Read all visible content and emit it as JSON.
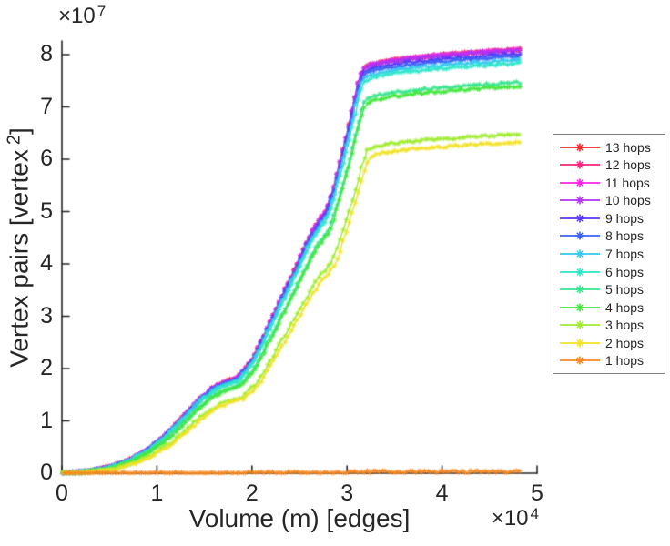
{
  "figure": {
    "background": "#ffffff",
    "text_color": "#262626",
    "axis_color": "#262626"
  },
  "axes": {
    "x": {
      "label": "Volume (m) [edges]",
      "multiplier_base": "×10",
      "multiplier_exp": "4",
      "ticks": [
        "0",
        "1",
        "2",
        "3",
        "4",
        "5"
      ],
      "lim": [
        0,
        5
      ]
    },
    "y": {
      "label_main": "Vertex pairs [vertex",
      "label_sup": "2",
      "label_close": "]",
      "multiplier_base": "×10",
      "multiplier_exp": "7",
      "ticks": [
        "0",
        "1",
        "2",
        "3",
        "4",
        "5",
        "6",
        "7",
        "8"
      ],
      "lim": [
        0,
        8.26
      ]
    }
  },
  "chart_data": {
    "type": "line",
    "title": "",
    "xlabel": "Volume (m) [edges]",
    "ylabel": "Vertex pairs [vertex^2]",
    "x_unit": 10000,
    "y_unit": 10000000,
    "xlim": [
      0,
      5
    ],
    "ylim": [
      0,
      8.26
    ],
    "grid": false,
    "legend_position": "right-outside",
    "marker": "asterisk",
    "x_end": 4.84,
    "shape_note": "common S-curve shape shared by all hop series; y values are for the top (13-hop) curve in units of 1e7; each series = plateau/8.08 * shape",
    "shape_x": [
      0,
      0.15,
      0.3,
      0.5,
      0.7,
      0.9,
      1.1,
      1.3,
      1.45,
      1.6,
      1.72,
      1.85,
      2.0,
      2.15,
      2.3,
      2.45,
      2.58,
      2.68,
      2.78,
      2.86,
      2.93,
      3.0,
      3.06,
      3.12,
      3.17,
      3.25,
      3.4,
      3.6,
      3.85,
      4.1,
      4.4,
      4.65,
      4.84
    ],
    "shape_y": [
      0,
      0.015,
      0.045,
      0.11,
      0.24,
      0.44,
      0.74,
      1.12,
      1.42,
      1.64,
      1.74,
      1.82,
      2.15,
      2.72,
      3.3,
      3.88,
      4.42,
      4.75,
      5.0,
      5.45,
      5.95,
      6.45,
      6.95,
      7.45,
      7.72,
      7.79,
      7.85,
      7.9,
      7.95,
      7.99,
      8.03,
      8.06,
      8.08
    ],
    "series": [
      {
        "label": "13 hops",
        "color": "#f42823",
        "plateau": 8.1,
        "lag": 0
      },
      {
        "label": "12 hops",
        "color": "#f9247c",
        "plateau": 8.1,
        "lag": 0
      },
      {
        "label": "11 hops",
        "color": "#fa25e3",
        "plateau": 8.1,
        "lag": 0
      },
      {
        "label": "10 hops",
        "color": "#b134f3",
        "plateau": 8.09,
        "lag": 0
      },
      {
        "label": "9 hops",
        "color": "#5a35fa",
        "plateau": 8.02,
        "lag": 0
      },
      {
        "label": "8 hops",
        "color": "#3b62f8",
        "plateau": 7.97,
        "lag": 0
      },
      {
        "label": "7 hops",
        "color": "#35c8f0",
        "plateau": 7.9,
        "lag": 0
      },
      {
        "label": "6 hops",
        "color": "#2ee6c8",
        "plateau": 7.84,
        "lag": 0.01
      },
      {
        "label": "5 hops",
        "color": "#36e58e",
        "plateau": 7.47,
        "lag": 0.02
      },
      {
        "label": "4 hops",
        "color": "#44e53c",
        "plateau": 7.4,
        "lag": 0.03
      },
      {
        "label": "3 hops",
        "color": "#9fec2e",
        "plateau": 6.48,
        "lag": 0.05
      },
      {
        "label": "2 hops",
        "color": "#f2e227",
        "plateau": 6.33,
        "lag": 0.07
      },
      {
        "label": "1 hops",
        "color": "#f6871f",
        "plateau": 0.03,
        "lag": 0
      }
    ]
  }
}
